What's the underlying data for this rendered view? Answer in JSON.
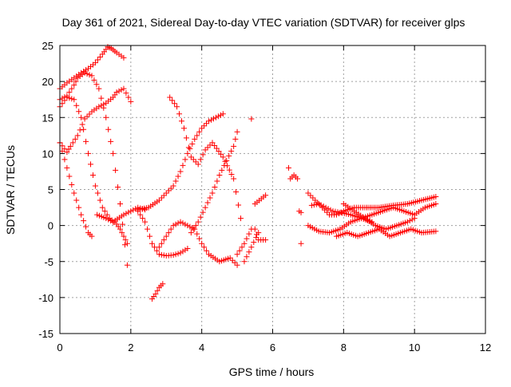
{
  "chart_data": {
    "type": "scatter",
    "title": "Day 361 of 2021, Sidereal Day-to-day VTEC variation (SDTVAR) for receiver glps",
    "xlabel": "GPS time / hours",
    "ylabel": "SDTVAR / TECUs",
    "xlim": [
      0,
      12
    ],
    "ylim": [
      -15,
      25
    ],
    "xticks": [
      "0",
      "2",
      "4",
      "6",
      "8",
      "10",
      "12"
    ],
    "yticks": [
      "-15",
      "-10",
      "-5",
      "0",
      "5",
      "10",
      "15",
      "20",
      "25"
    ],
    "grid": true,
    "marker": "+",
    "color": "#ff0000",
    "series": [
      {
        "x": [
          0.0,
          0.2,
          0.4,
          0.6,
          0.8,
          1.0,
          1.2,
          1.35,
          1.45,
          1.6,
          1.8
        ],
        "y": [
          19.0,
          19.8,
          20.5,
          21.2,
          21.8,
          22.6,
          23.8,
          24.8,
          24.6,
          24.0,
          23.3
        ]
      },
      {
        "x": [
          0.0,
          0.2,
          0.4,
          0.5,
          0.7,
          0.9,
          1.1,
          1.3,
          1.5,
          1.7,
          1.9
        ],
        "y": [
          17.5,
          18.0,
          19.5,
          20.5,
          21.2,
          20.8,
          19.0,
          15.0,
          10.0,
          3.0,
          -5.5
        ]
      },
      {
        "x": [
          0.0,
          0.2,
          0.4,
          0.6,
          0.8,
          1.0,
          1.2,
          1.4,
          1.6,
          1.7,
          1.8,
          1.9
        ],
        "y": [
          16.5,
          17.8,
          17.5,
          15.0,
          10.0,
          5.5,
          2.5,
          1.0,
          0.2,
          -0.5,
          -1.5,
          -2.5
        ]
      },
      {
        "x": [
          0.0,
          0.2,
          0.3,
          0.5,
          0.7,
          0.9,
          1.1,
          1.3,
          1.5,
          1.6,
          1.8,
          2.0
        ],
        "y": [
          11.5,
          10.2,
          11.0,
          12.5,
          14.8,
          15.8,
          16.5,
          17.0,
          17.8,
          18.5,
          19.0,
          17.2
        ]
      },
      {
        "x": [
          0.0,
          0.2,
          0.4,
          0.6,
          0.8,
          0.9
        ],
        "y": [
          11.5,
          8.0,
          4.5,
          1.5,
          -1.0,
          -1.5
        ]
      },
      {
        "x": [
          1.05,
          1.3,
          1.5,
          1.8,
          2.0,
          2.2,
          2.4
        ],
        "y": [
          1.5,
          1.0,
          0.5,
          1.5,
          2.0,
          2.5,
          2.2
        ]
      },
      {
        "x": [
          2.2,
          2.4,
          2.6,
          2.8,
          3.0,
          3.2,
          3.4,
          3.6
        ],
        "y": [
          2.0,
          0.5,
          -2.5,
          -4.0,
          -4.2,
          -4.1,
          -3.8,
          -3.2
        ]
      },
      {
        "x": [
          2.6,
          2.7,
          2.8,
          2.9
        ],
        "y": [
          -10.2,
          -9.5,
          -8.6,
          -8.1
        ]
      },
      {
        "x": [
          2.2,
          2.5,
          2.8,
          3.0,
          3.2,
          3.4,
          3.6,
          3.8,
          4.0,
          4.2,
          4.4,
          4.6
        ],
        "y": [
          2.2,
          2.5,
          3.5,
          4.5,
          5.5,
          7.5,
          10.0,
          12.0,
          13.5,
          14.5,
          15.0,
          15.5
        ]
      },
      {
        "x": [
          2.8,
          3.0,
          3.2,
          3.4,
          3.6,
          3.8,
          4.0,
          4.2,
          4.5,
          4.8,
          5.0
        ],
        "y": [
          -3.0,
          -1.5,
          0.0,
          0.5,
          0.0,
          -0.5,
          -2.5,
          -4.0,
          -5.0,
          -4.5,
          -5.5
        ]
      },
      {
        "x": [
          3.1,
          3.3,
          3.5,
          3.7,
          3.9,
          4.1,
          4.3,
          4.6,
          4.9,
          5.1
        ],
        "y": [
          17.8,
          16.5,
          13.5,
          9.5,
          8.5,
          10.5,
          11.5,
          9.5,
          6.5,
          1.0
        ]
      },
      {
        "x": [
          3.7,
          3.9,
          4.1,
          4.3,
          4.5,
          4.7,
          4.9,
          5.0
        ],
        "y": [
          -1.0,
          0.5,
          2.5,
          4.5,
          7.0,
          9.0,
          11.0,
          13.0
        ]
      },
      {
        "x": [
          5.0,
          5.2,
          5.4
        ],
        "y": [
          -4.0,
          -2.5,
          -0.5
        ]
      },
      {
        "x": [
          5.2,
          5.4,
          5.6
        ],
        "y": [
          -5.0,
          -3.0,
          -1.0
        ]
      },
      {
        "x": [
          5.4
        ],
        "y": [
          14.8
        ]
      },
      {
        "x": [
          5.5,
          5.6,
          5.8
        ],
        "y": [
          -0.5,
          -2.0,
          -2.0
        ]
      },
      {
        "x": [
          5.5,
          5.8
        ],
        "y": [
          3.0,
          4.2
        ]
      },
      {
        "x": [
          6.45,
          6.5,
          6.6,
          6.7,
          6.8,
          6.8
        ],
        "y": [
          8.0,
          6.5,
          7.0,
          6.5,
          -2.5,
          1.8
        ]
      },
      {
        "x": [
          7.0,
          7.2,
          7.4,
          7.6,
          7.8,
          8.0,
          8.3,
          8.6,
          9.0,
          9.4,
          9.8,
          10.2,
          10.6
        ],
        "y": [
          4.5,
          3.5,
          2.5,
          1.5,
          1.5,
          2.0,
          2.5,
          2.5,
          2.5,
          2.8,
          3.0,
          3.5,
          4.0
        ]
      },
      {
        "x": [
          7.0,
          7.3,
          7.6,
          7.9,
          8.2,
          8.5,
          8.8,
          9.1,
          9.4,
          9.7,
          10.0,
          10.3,
          10.6
        ],
        "y": [
          0.0,
          -0.8,
          -1.0,
          -0.5,
          0.5,
          1.0,
          1.5,
          2.0,
          2.5,
          2.0,
          1.5,
          2.5,
          3.0
        ]
      },
      {
        "x": [
          7.8,
          8.1,
          8.4,
          8.7,
          9.0,
          9.3,
          9.6,
          9.9,
          10.2,
          10.6
        ],
        "y": [
          -1.5,
          -1.0,
          -1.5,
          -1.0,
          -0.5,
          -1.5,
          -1.0,
          -0.5,
          -1.0,
          -0.8
        ]
      },
      {
        "x": [
          8.0,
          8.3,
          8.6,
          8.9,
          9.2,
          9.5,
          9.8,
          10.0
        ],
        "y": [
          3.0,
          2.0,
          1.0,
          0.0,
          -0.5,
          0.0,
          0.5,
          1.0
        ]
      },
      {
        "x": [
          7.1,
          7.3,
          7.5,
          7.7,
          7.9,
          8.2,
          8.5,
          8.8
        ],
        "y": [
          2.8,
          3.0,
          2.5,
          2.0,
          1.8,
          1.5,
          1.0,
          0.5
        ]
      }
    ]
  }
}
